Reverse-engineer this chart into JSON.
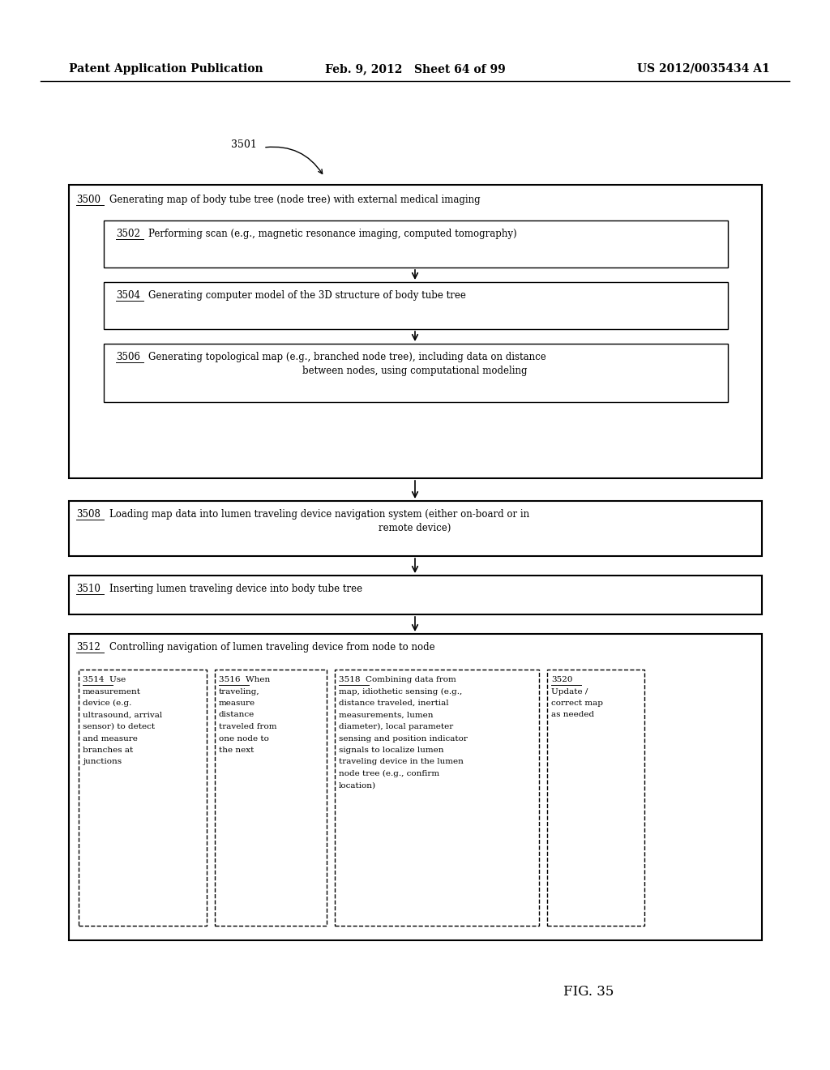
{
  "bg_color": "#ffffff",
  "header_left": "Patent Application Publication",
  "header_mid": "Feb. 9, 2012   Sheet 64 of 99",
  "header_right": "US 2012/0035434 A1",
  "fig_label": "FIG. 35",
  "ref_label": "3501"
}
